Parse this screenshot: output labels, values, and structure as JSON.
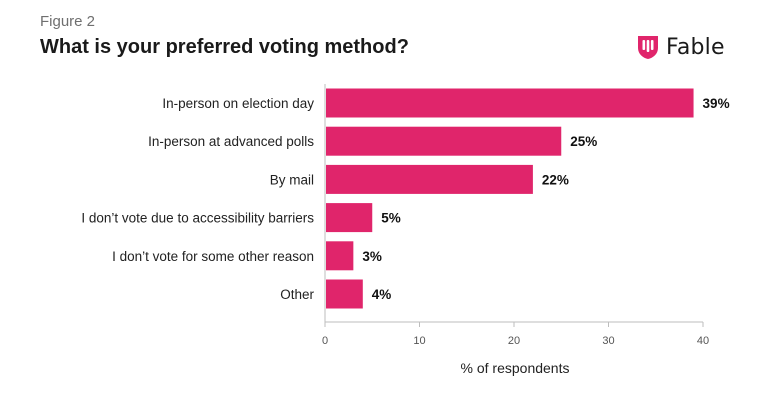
{
  "figure_label": "Figure 2",
  "title": "What is your preferred voting method?",
  "brand": {
    "name": "Fable",
    "logo_icon": "fable-shield-logo",
    "color": "#e0256b"
  },
  "chart_data": {
    "type": "bar",
    "orientation": "horizontal",
    "categories": [
      "In-person on election day",
      "In-person at advanced polls",
      "By mail",
      "I don’t vote due to accessibility barriers",
      "I don’t vote for some other reason",
      "Other"
    ],
    "values": [
      39,
      25,
      22,
      5,
      3,
      4
    ],
    "value_labels": [
      "39%",
      "25%",
      "22%",
      "5%",
      "3%",
      "4%"
    ],
    "xlabel": "% of respondents",
    "xlim": [
      0,
      40
    ],
    "xticks": [
      0,
      10,
      20,
      30,
      40
    ],
    "bar_color": "#e0256b",
    "grid": false
  }
}
